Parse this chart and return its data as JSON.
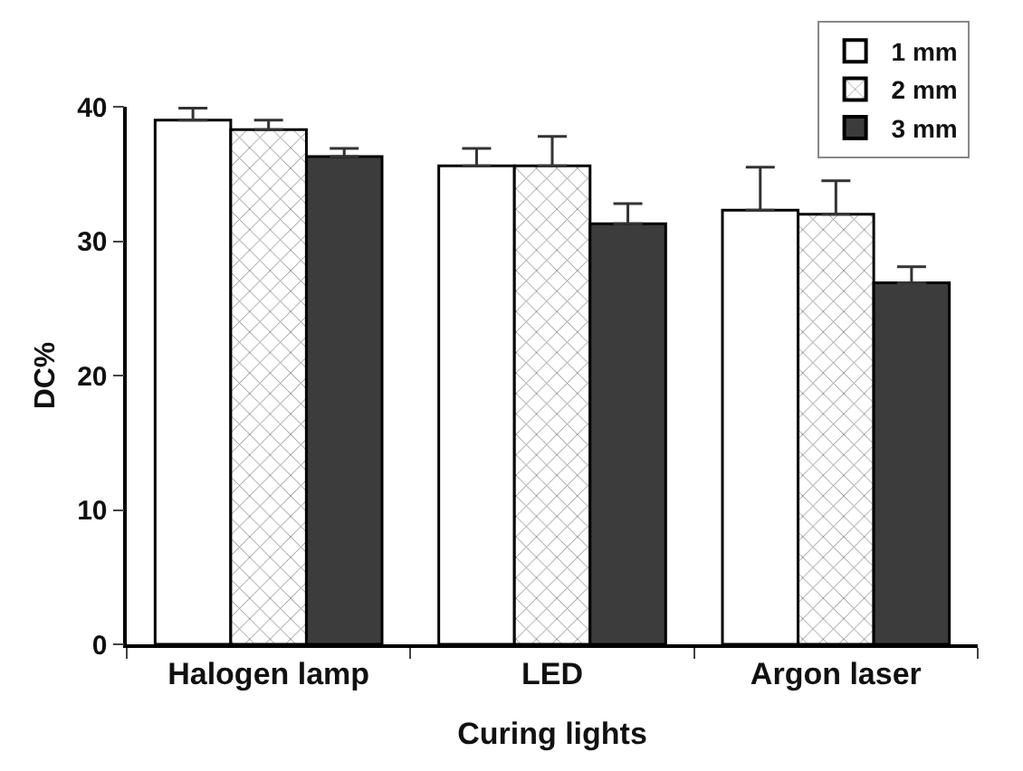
{
  "chart_data": {
    "type": "bar",
    "xlabel": "Curing lights",
    "ylabel": "DC%",
    "categories": [
      "Halogen lamp",
      "LED",
      "Argon laser"
    ],
    "series": [
      {
        "name": "1 mm",
        "color": "#ffffff",
        "values": [
          39.0,
          35.6,
          32.3
        ],
        "errors": [
          [
            39.0,
            39.9
          ],
          [
            35.6,
            36.9
          ],
          [
            32.3,
            35.5
          ]
        ]
      },
      {
        "name": "2 mm",
        "color": "#000000",
        "values": [
          38.3,
          35.6,
          32.0
        ],
        "errors": [
          [
            38.3,
            39.0
          ],
          [
            35.6,
            37.8
          ],
          [
            32.0,
            34.5
          ]
        ]
      },
      {
        "name": "3 mm",
        "color": "#3c3c3c",
        "values": [
          36.3,
          31.3,
          26.9
        ],
        "errors": [
          [
            36.3,
            36.9
          ],
          [
            31.3,
            32.8
          ],
          [
            26.9,
            28.1
          ]
        ]
      }
    ],
    "ylim": [
      0,
      40
    ],
    "yticks": [
      0,
      10,
      20,
      30,
      40
    ],
    "grid": false,
    "legend": "top right"
  }
}
